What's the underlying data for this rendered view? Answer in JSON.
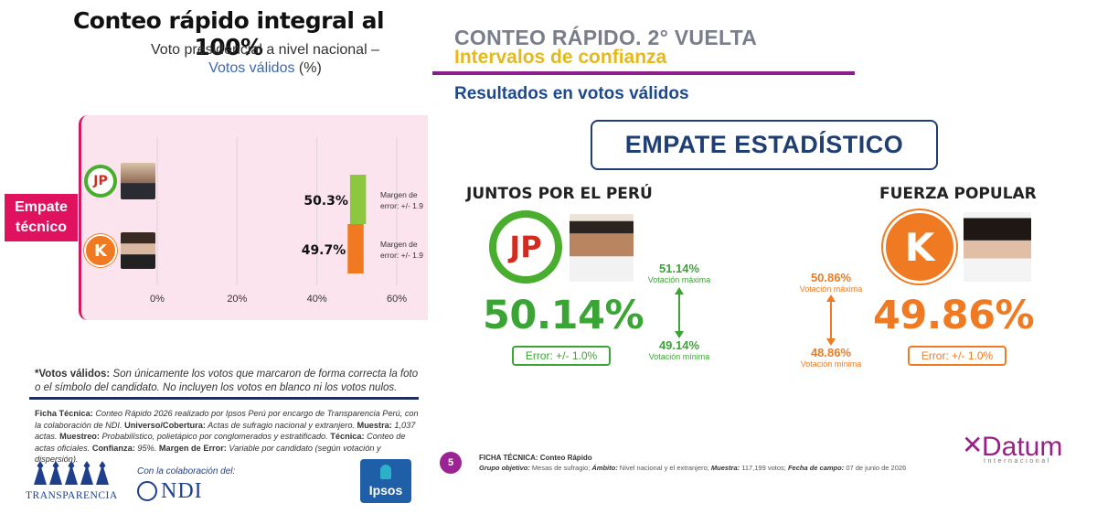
{
  "left": {
    "title": "Conteo rápido integral al 100%",
    "subtitle_line1": "Voto presidencial a nivel nacional –",
    "subtitle_blue": "Votos válidos",
    "subtitle_pct": "(%)",
    "badge_line1": "Empate",
    "badge_line2": "técnico",
    "jp_logo": "JP",
    "k_logo": "K",
    "footnote_bold": "*Votos válidos:",
    "footnote_text": " Son únicamente los votos que marcaron de forma correcta la foto o el símbolo del candidato. No incluyen los votos en blanco ni los votos nulos.",
    "ficha": {
      "b1": "Ficha Técnica:",
      "t1": " Conteo Rápido 2026 realizado por Ipsos Perú por encargo de Transparencia Perú, con la colaboración de NDI. ",
      "b2": "Universo/Cobertura:",
      "t2": " Actas de sufragio nacional y extranjero. ",
      "b3": "Muestra:",
      "t3": " 1,037 actas. ",
      "b4": "Muestreo:",
      "t4": " Probabilístico, polietápico por conglomerados y estratificado. ",
      "b5": "Técnica:",
      "t5": " Conteo de actas oficiales. ",
      "b6": "Confianza:",
      "t6": " 95%. ",
      "b7": "Margen de Error:",
      "t7": " Variable por candidato (según votación y dispersión)."
    },
    "transparencia": "TRANSPARENCIA",
    "ndi_label": "Con la colaboración del:",
    "ndi": "NDI",
    "ipsos": "Ipsos"
  },
  "chart_data": {
    "type": "bar",
    "orientation": "horizontal",
    "categories": [
      "Juntos por el Perú",
      "Fuerza Popular"
    ],
    "values": [
      50.3,
      49.7
    ],
    "value_labels": [
      "50.3%",
      "49.7%"
    ],
    "colors": [
      "#8dc63f",
      "#f07a22"
    ],
    "annotations": [
      "Margen de error: +/- 1.9",
      "Margen de error: +/- 1.9"
    ],
    "x_ticks": [
      "0%",
      "20%",
      "40%",
      "60%"
    ],
    "xlim": [
      0,
      60
    ],
    "grid": true
  },
  "right": {
    "title1": "CONTEO RÁPIDO.  2° VUELTA",
    "title2": "Intervalos de confianza",
    "results": "Resultados en votos válidos",
    "empate": "EMPATE ESTADÍSTICO",
    "party1": "JUNTOS POR EL PERÚ",
    "party2": "FUERZA POPULAR",
    "jp_logo": "JP",
    "k_logo": "K",
    "pct1": "50.14%",
    "pct2": "49.86%",
    "err1": "Error:  +/- 1.0%",
    "err2": "Error:  +/- 1.0%",
    "ci1_max": "51.14%",
    "ci1_min": "49.14%",
    "ci2_max": "50.86%",
    "ci2_min": "48.86%",
    "lab_max": "Votación máxima",
    "lab_min": "Votación mínima",
    "page": "5",
    "ficha_title": "FICHA TÉCNICA:  Conteo Rápido",
    "ficha_b1": "Grupo objetivo:",
    "ficha_t1": " Mesas de sufragio; ",
    "ficha_b2": "Ámbito:",
    "ficha_t2": " Nivel nacional y el extranjero; ",
    "ficha_b3": "Muestra:",
    "ficha_t3": " 117,199 votos; ",
    "ficha_b4": "Fecha de campo:",
    "ficha_t4": " 07 de junio de 2026",
    "datum": "Datum",
    "datum_sub": "Internacional"
  },
  "colors": {
    "green": "#3aa535",
    "orange": "#f07a22",
    "pink": "#e0115f",
    "navy": "#1f3e74",
    "purple": "#8b1e8c"
  }
}
